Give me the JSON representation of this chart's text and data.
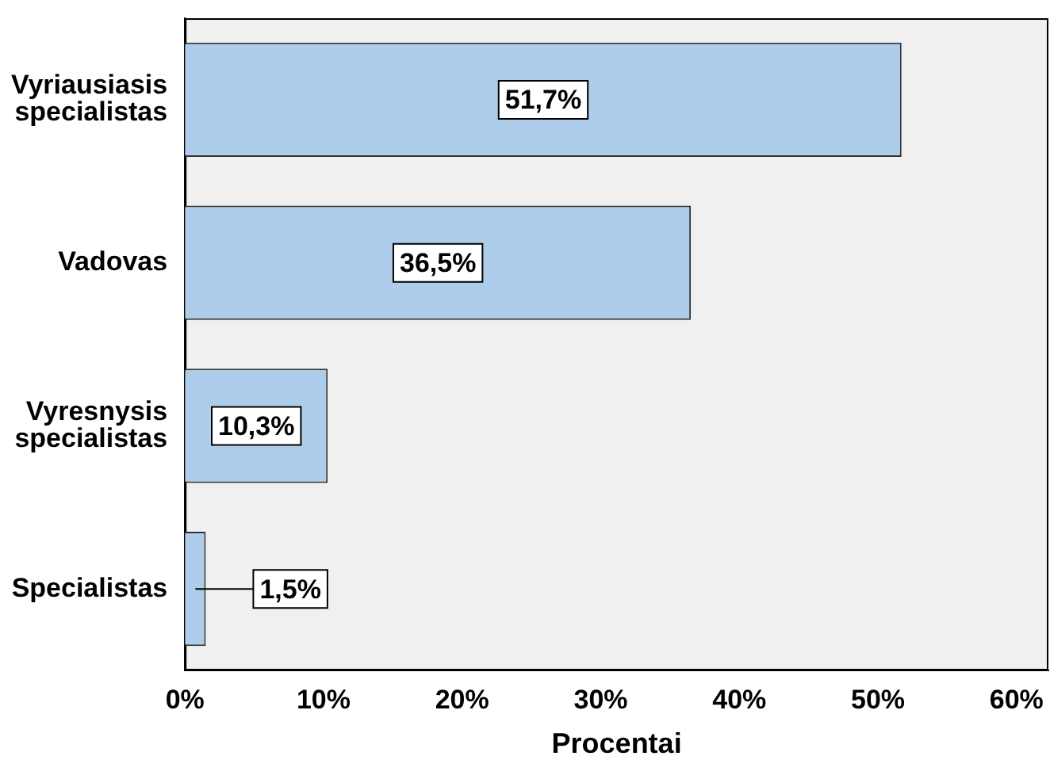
{
  "chart_data": {
    "type": "bar",
    "orientation": "horizontal",
    "xlabel": "Procentai",
    "categories": [
      "Vyriausiasis specialistas",
      "Vadovas",
      "Vyresnysis specialistas",
      "Specialistas"
    ],
    "values": [
      51.7,
      36.5,
      10.3,
      1.5
    ],
    "value_labels": [
      "51,7%",
      "36,5%",
      "10,3%",
      "1,5%"
    ],
    "color": "#aecdea",
    "xlim": [
      0,
      62.3
    ],
    "xticks": [
      {
        "value": 0,
        "label": "0%"
      },
      {
        "value": 10,
        "label": "10%"
      },
      {
        "value": 20,
        "label": "20%"
      },
      {
        "value": 30,
        "label": "30%"
      },
      {
        "value": 40,
        "label": "40%"
      },
      {
        "value": 50,
        "label": "50%"
      },
      {
        "value": 60,
        "label": "60%"
      }
    ],
    "grid": false,
    "legend": false
  }
}
